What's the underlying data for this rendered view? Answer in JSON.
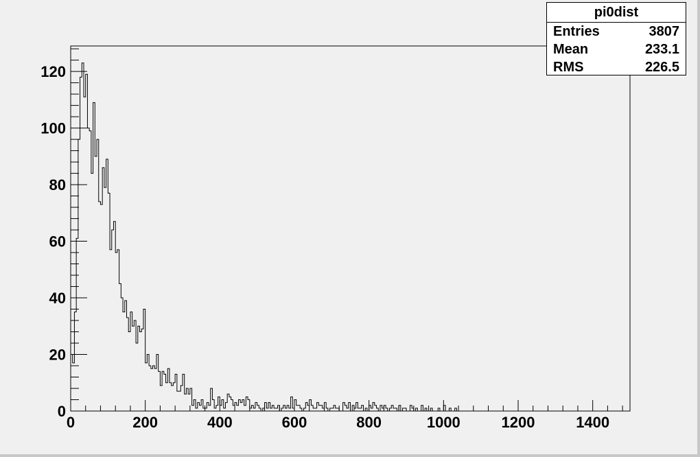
{
  "chart_data": {
    "type": "bar",
    "title": "pi0dist",
    "xlabel": "",
    "ylabel": "",
    "xlim": [
      0,
      1500
    ],
    "ylim": [
      0,
      129
    ],
    "bin_width": 5,
    "x_ticks": [
      0,
      200,
      400,
      600,
      800,
      1000,
      1200,
      1400
    ],
    "y_ticks": [
      0,
      20,
      40,
      60,
      80,
      100,
      120
    ],
    "grid": false,
    "legend": "none",
    "values": [
      20,
      17,
      35,
      61,
      96,
      118,
      123,
      111,
      119,
      100,
      99,
      84,
      109,
      90,
      96,
      74,
      73,
      86,
      79,
      89,
      77,
      57,
      64,
      67,
      56,
      57,
      45,
      40,
      35,
      39,
      33,
      28,
      35,
      30,
      32,
      24,
      30,
      28,
      29,
      36,
      17,
      20,
      16,
      15,
      16,
      15,
      20,
      14,
      9,
      14,
      13,
      10,
      15,
      10,
      9,
      10,
      13,
      7,
      7,
      9,
      13,
      6,
      8,
      6,
      8,
      2,
      4,
      1,
      3,
      2,
      4,
      1,
      1,
      3,
      2,
      8,
      4,
      1,
      2,
      5,
      2,
      4,
      1,
      3,
      6,
      5,
      4,
      2,
      3,
      2,
      4,
      3,
      4,
      2,
      5,
      4,
      1,
      2,
      1,
      3,
      2,
      1,
      0,
      1,
      3,
      1,
      3,
      1,
      2,
      1,
      1,
      2,
      0,
      1,
      2,
      1,
      2,
      1,
      5,
      1,
      4,
      2,
      2,
      1,
      0,
      1,
      3,
      2,
      4,
      2,
      1,
      1,
      3,
      2,
      2,
      1,
      3,
      1,
      0,
      1,
      1,
      2,
      1,
      1,
      0,
      0,
      3,
      2,
      1,
      3,
      0,
      2,
      1,
      3,
      1,
      1,
      2,
      0,
      1,
      0,
      2,
      1,
      3,
      2,
      1,
      0,
      2,
      1,
      2,
      1,
      0,
      1,
      2,
      1,
      1,
      0,
      2,
      0,
      1,
      1,
      0,
      0,
      2,
      1,
      0,
      1,
      0,
      0,
      2,
      0,
      1,
      0,
      0,
      1,
      0,
      0,
      0,
      1,
      0,
      0,
      2,
      0,
      0,
      1,
      0,
      0,
      1,
      0,
      0,
      0
    ],
    "stats": {
      "title": "pi0dist",
      "rows": [
        {
          "label": "Entries",
          "value": "3807"
        },
        {
          "label": "Mean",
          "value": "233.1"
        },
        {
          "label": "RMS",
          "value": "226.5"
        }
      ]
    }
  }
}
